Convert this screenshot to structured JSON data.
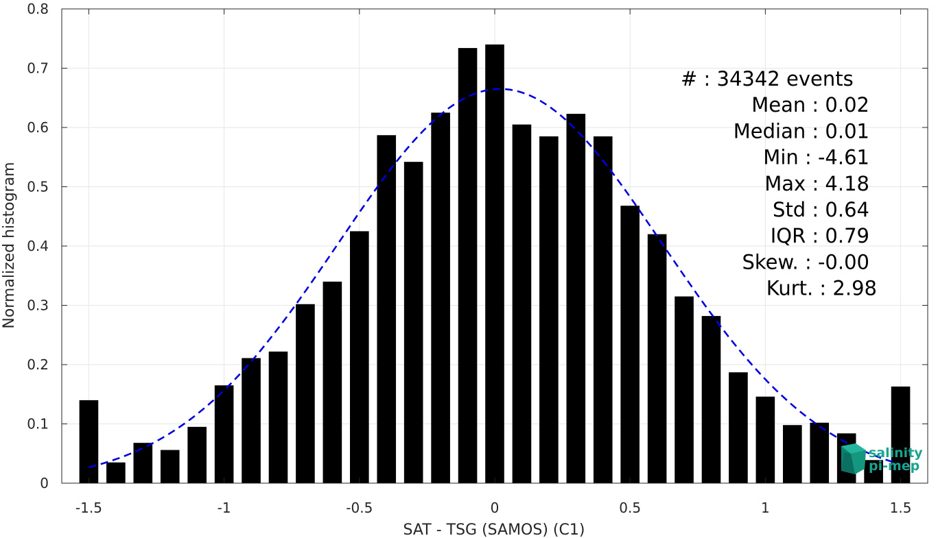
{
  "chart_data": {
    "type": "bar",
    "xlabel": "SAT - TSG (SAMOS) (C1)",
    "ylabel": "Normalized histogram",
    "xlim": [
      -1.6,
      1.6
    ],
    "ylim": [
      0,
      0.8
    ],
    "grid": true,
    "x_ticks": [
      -1.5,
      -1,
      -0.5,
      0,
      0.5,
      1,
      1.5
    ],
    "x_tick_labels": [
      "-1.5",
      "-1",
      "-0.5",
      "0",
      "0.5",
      "1",
      "1.5"
    ],
    "y_ticks": [
      0,
      0.1,
      0.2,
      0.3,
      0.4,
      0.5,
      0.6,
      0.7,
      0.8
    ],
    "y_tick_labels": [
      "0",
      "0.1",
      "0.2",
      "0.3",
      "0.4",
      "0.5",
      "0.6",
      "0.7",
      "0.8"
    ],
    "bar_width": 0.07,
    "bar_color": "#000000",
    "bins": [
      {
        "x": -1.5,
        "y": 0.14
      },
      {
        "x": -1.4,
        "y": 0.035
      },
      {
        "x": -1.3,
        "y": 0.068
      },
      {
        "x": -1.2,
        "y": 0.056
      },
      {
        "x": -1.1,
        "y": 0.095
      },
      {
        "x": -1.0,
        "y": 0.165
      },
      {
        "x": -0.9,
        "y": 0.211
      },
      {
        "x": -0.8,
        "y": 0.222
      },
      {
        "x": -0.7,
        "y": 0.302
      },
      {
        "x": -0.6,
        "y": 0.34
      },
      {
        "x": -0.5,
        "y": 0.425
      },
      {
        "x": -0.4,
        "y": 0.587
      },
      {
        "x": -0.3,
        "y": 0.542
      },
      {
        "x": -0.2,
        "y": 0.625
      },
      {
        "x": -0.1,
        "y": 0.734
      },
      {
        "x": 0.0,
        "y": 0.74
      },
      {
        "x": 0.1,
        "y": 0.605
      },
      {
        "x": 0.2,
        "y": 0.585
      },
      {
        "x": 0.3,
        "y": 0.623
      },
      {
        "x": 0.4,
        "y": 0.585
      },
      {
        "x": 0.5,
        "y": 0.468
      },
      {
        "x": 0.6,
        "y": 0.42
      },
      {
        "x": 0.7,
        "y": 0.315
      },
      {
        "x": 0.8,
        "y": 0.282
      },
      {
        "x": 0.9,
        "y": 0.187
      },
      {
        "x": 1.0,
        "y": 0.146
      },
      {
        "x": 1.1,
        "y": 0.098
      },
      {
        "x": 1.2,
        "y": 0.102
      },
      {
        "x": 1.3,
        "y": 0.084
      },
      {
        "x": 1.4,
        "y": 0.039
      },
      {
        "x": 1.5,
        "y": 0.163
      }
    ],
    "fit_curve": {
      "style": "dashed",
      "color": "#0000dd",
      "mean": 0.02,
      "std": 0.6,
      "peak": 0.665,
      "x_range": [
        -1.5,
        1.5
      ]
    },
    "stats": [
      {
        "label": "#  ",
        "value": ": 34342 events"
      },
      {
        "label": "Mean",
        "value": " : 0.02"
      },
      {
        "label": "Median",
        "value": " : 0.01"
      },
      {
        "label": "Min",
        "value": " : -4.61"
      },
      {
        "label": "Max",
        "value": " : 4.18"
      },
      {
        "label": "Std",
        "value": " : 0.64"
      },
      {
        "label": "IQR",
        "value": " : 0.79"
      },
      {
        "label": "Skew.",
        "value": " : -0.00"
      },
      {
        "label": "Kurt.",
        "value": " : 2.98"
      }
    ]
  },
  "logo": {
    "line1": "salinity",
    "line2": "pi-mep",
    "color": "#1aa38f"
  }
}
